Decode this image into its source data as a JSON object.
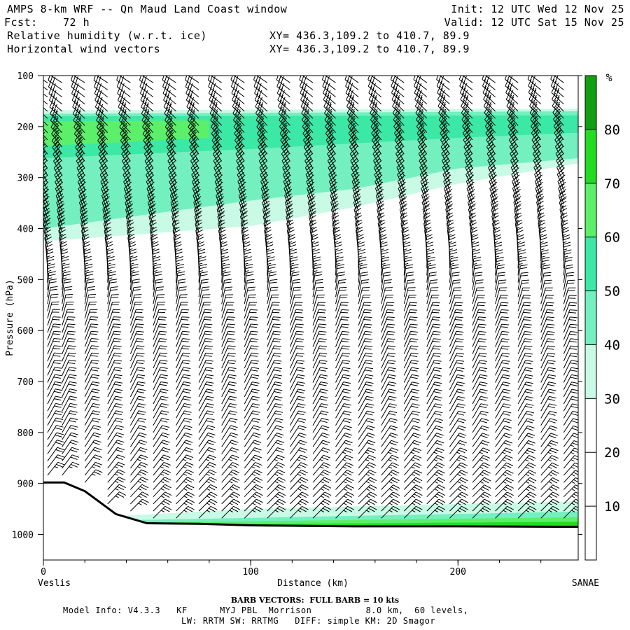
{
  "header": {
    "title": "AMPS 8-km WRF -- Qn Maud Land Coast window",
    "fcst_label": "Fcst:",
    "fcst_value": "72 h",
    "field1": "Relative humidity (w.r.t. ice)",
    "field2": "Horizontal wind vectors",
    "xy1": "XY= 436.3,109.2 to 410.7, 89.9",
    "xy2": "XY= 436.3,109.2 to 410.7, 89.9",
    "init": "Init: 12 UTC Wed 12 Nov 25",
    "valid": "Valid: 12 UTC Sat 15 Nov 25"
  },
  "footer": {
    "barb_note": "BARB VECTORS:  FULL BARB = 10 kts",
    "model_line1": "Model Info: V4.3.3   KF      MYJ PBL  Morrison          8.0 km,  60 levels,",
    "model_line2": "LW: RRTM SW: RRTMG   DIFF: simple KM: 2D Smagor"
  },
  "chart_data": {
    "type": "heatmap",
    "title": "Relative humidity (w.r.t. ice) with horizontal wind vectors",
    "xlabel": "Distance (km)",
    "ylabel": "Pressure (hPa)",
    "xlim": [
      0,
      258
    ],
    "ylim": [
      100,
      1050
    ],
    "x_ticks": [
      0,
      100,
      200
    ],
    "y_ticks": [
      100,
      200,
      300,
      400,
      500,
      600,
      700,
      800,
      900,
      1000
    ],
    "x_endpoints": {
      "left": "Veslis",
      "right": "SANAE"
    },
    "colorbar": {
      "unit": "%",
      "levels": [
        10,
        20,
        30,
        40,
        50,
        60,
        70,
        80
      ],
      "bins": [
        {
          "range": [
            0,
            30
          ],
          "color": "#ffffff"
        },
        {
          "range": [
            30,
            40
          ],
          "color": "#c8fae6"
        },
        {
          "range": [
            40,
            50
          ],
          "color": "#74f0c0"
        },
        {
          "range": [
            50,
            60
          ],
          "color": "#3ce8a6"
        },
        {
          "range": [
            60,
            70
          ],
          "color": "#5cf06a"
        },
        {
          "range": [
            70,
            80
          ],
          "color": "#22dc22"
        },
        {
          "range": [
            80,
            100
          ],
          "color": "#12a012"
        }
      ]
    },
    "rh_layers": [
      {
        "level": 30,
        "top": [
          [
            0,
            168
          ],
          [
            250,
            165
          ],
          [
            258,
            165
          ]
        ],
        "bottom": [
          [
            0,
            425
          ],
          [
            100,
            395
          ],
          [
            150,
            358
          ],
          [
            200,
            312
          ],
          [
            258,
            272
          ]
        ]
      },
      {
        "level": 40,
        "top": [
          [
            0,
            175
          ],
          [
            258,
            170
          ]
        ],
        "bottom": [
          [
            0,
            400
          ],
          [
            100,
            345
          ],
          [
            150,
            322
          ],
          [
            200,
            282
          ],
          [
            258,
            262
          ]
        ]
      },
      {
        "level": 50,
        "top": [
          [
            0,
            180
          ],
          [
            258,
            178
          ]
        ],
        "bottom": [
          [
            0,
            262
          ],
          [
            100,
            244
          ],
          [
            200,
            222
          ],
          [
            258,
            212
          ]
        ]
      },
      {
        "level": 60,
        "top": [
          [
            0,
            190
          ],
          [
            80,
            188
          ]
        ],
        "bottom": [
          [
            0,
            238
          ],
          [
            80,
            222
          ]
        ]
      }
    ],
    "surface_layers": [
      {
        "level": 30,
        "top": [
          [
            30,
            965
          ],
          [
            100,
            950
          ],
          [
            200,
            940
          ],
          [
            258,
            935
          ]
        ]
      },
      {
        "level": 40,
        "top": [
          [
            40,
            972
          ],
          [
            258,
            955
          ]
        ]
      },
      {
        "level": 60,
        "top": [
          [
            60,
            976
          ],
          [
            258,
            966
          ]
        ]
      },
      {
        "level": 70,
        "top": [
          [
            80,
            980
          ],
          [
            258,
            975
          ]
        ]
      }
    ],
    "terrain": [
      [
        0,
        898
      ],
      [
        10,
        898
      ],
      [
        20,
        915
      ],
      [
        35,
        960
      ],
      [
        50,
        978
      ],
      [
        75,
        979
      ],
      [
        100,
        982
      ],
      [
        150,
        984
      ],
      [
        200,
        984
      ],
      [
        258,
        985
      ]
    ],
    "wind_barbs": {
      "columns_km": [
        2,
        9,
        20,
        31,
        42,
        53,
        64,
        75,
        86,
        97,
        108,
        119,
        130,
        141,
        152,
        163,
        174,
        185,
        196,
        207,
        218,
        229,
        240,
        251
      ],
      "pressure_step_hpa": 14,
      "profile": [
        {
          "p": 100,
          "dir": 300,
          "kts": 25
        },
        {
          "p": 200,
          "dir": 315,
          "kts": 35
        },
        {
          "p": 300,
          "dir": 330,
          "kts": 35
        },
        {
          "p": 450,
          "dir": 350,
          "kts": 25
        },
        {
          "p": 600,
          "dir": 20,
          "kts": 20
        },
        {
          "p": 800,
          "dir": 30,
          "kts": 20
        },
        {
          "p": 950,
          "dir": 45,
          "kts": 25
        }
      ]
    }
  }
}
